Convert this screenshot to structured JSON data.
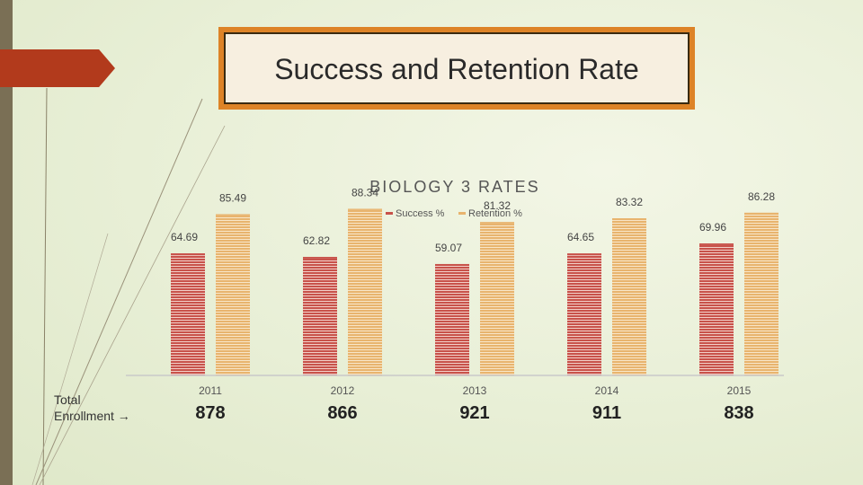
{
  "slide": {
    "title": "Success and Retention Rate",
    "enrollment_label_line1": "Total",
    "enrollment_label_line2": "Enrollment →"
  },
  "colors": {
    "success": "#c8524a",
    "retention": "#e8b46e",
    "title_border": "#dd8327",
    "arrow": "#b23a1c"
  },
  "chart_data": {
    "type": "bar",
    "title": "BIOLOGY 3 RATES",
    "categories": [
      "2011",
      "2012",
      "2013",
      "2014",
      "2015"
    ],
    "series": [
      {
        "name": "Success %",
        "values": [
          64.69,
          62.82,
          59.07,
          64.65,
          69.96
        ]
      },
      {
        "name": "Retention %",
        "values": [
          85.49,
          88.34,
          81.32,
          83.32,
          86.28
        ]
      }
    ],
    "enrollment": [
      878,
      866,
      921,
      911,
      838
    ],
    "legend": "top",
    "grid": false
  }
}
